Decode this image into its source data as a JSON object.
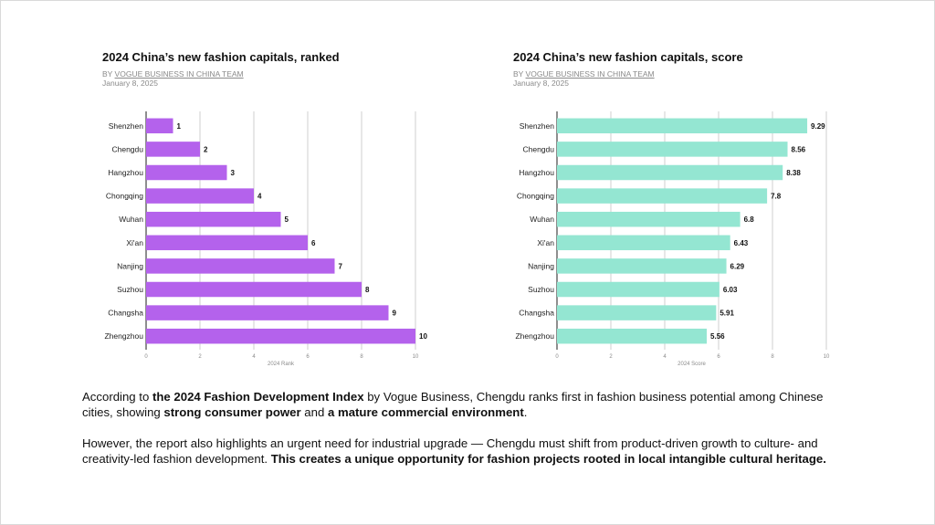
{
  "colors": {
    "rank_bar": "#b462ec",
    "score_bar": "#94e6d2",
    "grid": "#cfcfcf",
    "axis": "#444444",
    "label_text": "#222222",
    "meta_text": "#8a8a8a"
  },
  "charts": {
    "rank": {
      "title": "2024 China’s new fashion capitals, ranked",
      "by_prefix": "BY ",
      "org": "VOGUE BUSINESS IN CHINA TEAM",
      "date": "January 8, 2025"
    },
    "score": {
      "title": "2024 China’s new fashion capitals, score",
      "by_prefix": "BY ",
      "org": "VOGUE BUSINESS IN CHINA TEAM",
      "date": "January 8, 2025"
    }
  },
  "chart_data": [
    {
      "type": "bar",
      "orientation": "horizontal",
      "title": "2024 China’s new fashion capitals, ranked",
      "categories": [
        "Shenzhen",
        "Chengdu",
        "Hangzhou",
        "Chongqing",
        "Wuhan",
        "Xi'an",
        "Nanjing",
        "Suzhou",
        "Changsha",
        "Zhengzhou"
      ],
      "values": [
        1,
        2,
        3,
        4,
        5,
        6,
        7,
        8,
        9,
        10
      ],
      "value_labels": [
        "1",
        "2",
        "3",
        "4",
        "5",
        "6",
        "7",
        "8",
        "9",
        "10"
      ],
      "xlabel": "2024 Rank",
      "ylabel": "",
      "xlim": [
        0,
        10
      ],
      "xticks": [
        0,
        2,
        4,
        6,
        8,
        10
      ],
      "grid": true,
      "color": "#b462ec"
    },
    {
      "type": "bar",
      "orientation": "horizontal",
      "title": "2024 China’s new fashion capitals, score",
      "categories": [
        "Shenzhen",
        "Chengdu",
        "Hangzhou",
        "Chongqing",
        "Wuhan",
        "Xi'an",
        "Nanjing",
        "Suzhou",
        "Changsha",
        "Zhengzhou"
      ],
      "values": [
        9.29,
        8.56,
        8.38,
        7.8,
        6.8,
        6.43,
        6.29,
        6.03,
        5.91,
        5.56
      ],
      "value_labels": [
        "9.29",
        "8.56",
        "8.38",
        "7.8",
        "6.8",
        "6.43",
        "6.29",
        "6.03",
        "5.91",
        "5.56"
      ],
      "xlabel": "2024 Score",
      "ylabel": "",
      "xlim": [
        0,
        10
      ],
      "xticks": [
        0,
        2,
        4,
        6,
        8,
        10
      ],
      "grid": true,
      "color": "#94e6d2"
    }
  ],
  "text": {
    "p1_a": "According to ",
    "p1_b": "the 2024 Fashion Development Index",
    "p1_c": " by Vogue Business, Chengdu ranks first in fashion business potential among Chinese cities, showing ",
    "p1_d": "strong consumer power",
    "p1_e": " and ",
    "p1_f": "a mature commercial environment",
    "p1_g": ".",
    "p2_a": "However, the report also highlights an urgent need for industrial upgrade — Chengdu must shift from product-driven growth to culture- and creativity-led fashion development. ",
    "p2_b": "This creates a unique opportunity for fashion projects rooted in local intangible cultural heritage."
  }
}
